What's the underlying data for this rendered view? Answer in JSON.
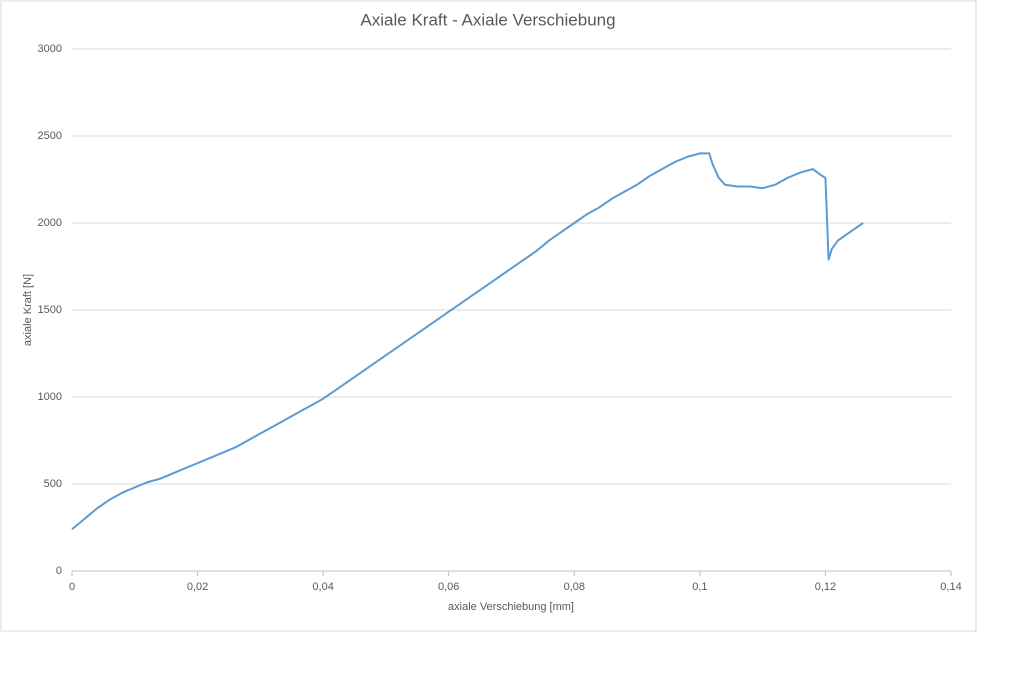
{
  "chart_data": {
    "type": "line",
    "title": "Axiale Kraft - Axiale Verschiebung",
    "xlabel": "axiale Verschiebung [mm]",
    "ylabel": "axiale Kraft [N]",
    "xlim": [
      0,
      0.14
    ],
    "ylim": [
      0,
      3000
    ],
    "xticks": [
      0,
      {
        "value": 0.02,
        "label": "0,02"
      },
      {
        "value": 0.04,
        "label": "0,04"
      },
      {
        "value": 0.06,
        "label": "0,06"
      },
      {
        "value": 0.08,
        "label": "0,08"
      },
      {
        "value": 0.1,
        "label": "0,1"
      },
      {
        "value": 0.12,
        "label": "0,12"
      },
      {
        "value": 0.14,
        "label": "0,14"
      }
    ],
    "yticks": [
      0,
      500,
      1000,
      1500,
      2000,
      2500,
      3000
    ],
    "grid": true,
    "series": [
      {
        "color": "#5b9bd5",
        "x": [
          0,
          0.002,
          0.004,
          0.006,
          0.008,
          0.01,
          0.012,
          0.014,
          0.016,
          0.018,
          0.02,
          0.022,
          0.024,
          0.026,
          0.028,
          0.03,
          0.032,
          0.034,
          0.036,
          0.038,
          0.04,
          0.042,
          0.044,
          0.046,
          0.048,
          0.05,
          0.052,
          0.054,
          0.056,
          0.058,
          0.06,
          0.062,
          0.064,
          0.066,
          0.068,
          0.07,
          0.072,
          0.074,
          0.076,
          0.078,
          0.08,
          0.082,
          0.084,
          0.086,
          0.088,
          0.09,
          0.092,
          0.094,
          0.096,
          0.098,
          0.1,
          0.1015,
          0.102,
          0.103,
          0.104,
          0.106,
          0.108,
          0.11,
          0.112,
          0.114,
          0.116,
          0.118,
          0.1195,
          0.12,
          0.1205,
          0.121,
          0.122,
          0.124,
          0.126
        ],
        "values": [
          240,
          300,
          360,
          410,
          450,
          480,
          510,
          530,
          560,
          590,
          620,
          650,
          680,
          710,
          750,
          790,
          830,
          870,
          910,
          950,
          990,
          1040,
          1090,
          1140,
          1190,
          1240,
          1290,
          1340,
          1390,
          1440,
          1490,
          1540,
          1590,
          1640,
          1690,
          1740,
          1790,
          1840,
          1900,
          1950,
          2000,
          2050,
          2090,
          2140,
          2180,
          2220,
          2270,
          2310,
          2350,
          2380,
          2400,
          2400,
          2340,
          2260,
          2220,
          2210,
          2210,
          2200,
          2220,
          2260,
          2290,
          2310,
          2270,
          2260,
          1790,
          1850,
          1900,
          1950,
          2000
        ]
      }
    ]
  }
}
